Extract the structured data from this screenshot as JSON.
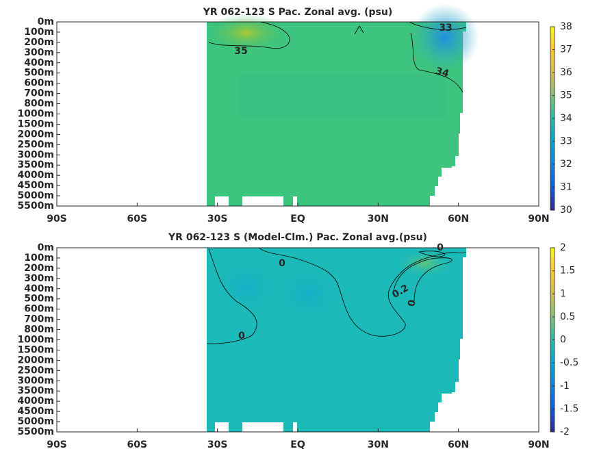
{
  "chart_data": [
    {
      "type": "contour",
      "title": "YR 062-123 S Pac. Zonal avg. (psu)",
      "y_categories": [
        "0m",
        "100m",
        "200m",
        "300m",
        "400m",
        "500m",
        "600m",
        "700m",
        "800m",
        "1000m",
        "1500m",
        "2000m",
        "2500m",
        "3000m",
        "3500m",
        "4000m",
        "4500m",
        "5000m",
        "5500m"
      ],
      "xlim": [
        -90,
        90
      ],
      "xticks": [
        {
          "value": -90,
          "label": "90S"
        },
        {
          "value": -60,
          "label": "60S"
        },
        {
          "value": -30,
          "label": "30S"
        },
        {
          "value": 0,
          "label": "EQ"
        },
        {
          "value": 30,
          "label": "30N"
        },
        {
          "value": 60,
          "label": "60N"
        },
        {
          "value": 90,
          "label": "90N"
        }
      ],
      "clim": [
        30,
        38
      ],
      "cticks": [
        30,
        31,
        32,
        33,
        34,
        35,
        36,
        37,
        38
      ],
      "contour_labels": [
        35,
        33,
        34
      ]
    },
    {
      "type": "contour",
      "title": "YR 062-123 S (Model-Clm.) Pac. Zonal avg.(psu)",
      "y_categories": [
        "0m",
        "100m",
        "200m",
        "300m",
        "400m",
        "500m",
        "600m",
        "700m",
        "800m",
        "1000m",
        "1500m",
        "2000m",
        "2500m",
        "3000m",
        "3500m",
        "4000m",
        "4500m",
        "5000m",
        "5500m"
      ],
      "xlim": [
        -90,
        90
      ],
      "xticks": [
        {
          "value": -90,
          "label": "90S"
        },
        {
          "value": -60,
          "label": "60S"
        },
        {
          "value": -30,
          "label": "30S"
        },
        {
          "value": 0,
          "label": "EQ"
        },
        {
          "value": 30,
          "label": "30N"
        },
        {
          "value": 60,
          "label": "60N"
        },
        {
          "value": 90,
          "label": "90N"
        }
      ],
      "clim": [
        -2,
        2
      ],
      "cticks": [
        -2,
        -1.5,
        -1,
        -0.5,
        0,
        0.5,
        1,
        1.5,
        2
      ],
      "contour_labels": [
        0,
        0,
        0.2,
        0,
        0
      ]
    }
  ]
}
